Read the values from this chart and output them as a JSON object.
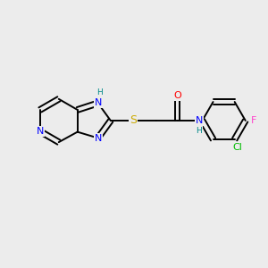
{
  "background_color": "#ececec",
  "bond_color": "#000000",
  "atom_colors": {
    "N": "#0000ff",
    "O": "#ff0000",
    "S": "#ccaa00",
    "Cl": "#00bb00",
    "F": "#ff44cc",
    "H": "#008888",
    "C": "#000000"
  },
  "font_size": 8.0,
  "lw": 1.4,
  "figure_size": [
    3.0,
    3.0
  ],
  "dpi": 100,
  "xlim": [
    0,
    10
  ],
  "ylim": [
    0,
    10
  ]
}
